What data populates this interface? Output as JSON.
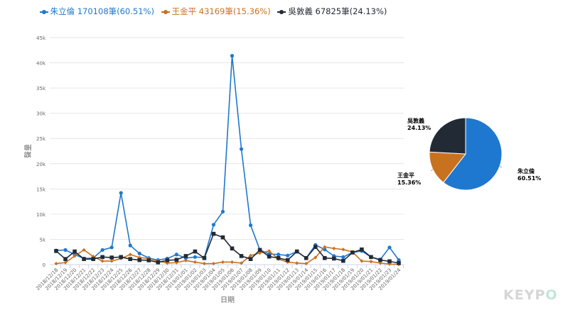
{
  "legend": [
    {
      "label": "朱立倫 170108筆(60.51%)",
      "color": "#1f78cf"
    },
    {
      "label": "王金平 43169筆(15.36%)",
      "color": "#c8721f"
    },
    {
      "label": "吳敦義 67825筆(24.13%)",
      "color": "#222a35"
    }
  ],
  "watermark": {
    "part1": "KEYP",
    "part2": "O"
  },
  "chart_data": [
    {
      "type": "line",
      "xlabel": "日期",
      "ylabel": "聲量",
      "ylim": [
        0,
        45000
      ],
      "yticks": [
        "0",
        "5k",
        "10k",
        "15k",
        "20k",
        "25k",
        "30k",
        "35k",
        "40k",
        "45k"
      ],
      "grid": true,
      "legend_position": "top",
      "categories": [
        "2018/12/18",
        "2018/12/19",
        "2018/12/20",
        "2018/12/21",
        "2018/12/22",
        "2018/12/23",
        "2018/12/24",
        "2018/12/25",
        "2018/12/26",
        "2018/12/27",
        "2018/12/28",
        "2018/12/29",
        "2018/12/30",
        "2018/12/31",
        "2019/01/01",
        "2019/01/02",
        "2019/01/03",
        "2019/01/04",
        "2019/01/05",
        "2019/01/06",
        "2019/01/07",
        "2019/01/08",
        "2019/01/09",
        "2019/01/10",
        "2019/01/11",
        "2019/01/12",
        "2019/01/13",
        "2019/01/14",
        "2019/01/15",
        "2019/01/16",
        "2019/01/17",
        "2019/01/18",
        "2019/01/19",
        "2019/01/20",
        "2019/01/21",
        "2019/01/22",
        "2019/01/23",
        "2019/01/24"
      ],
      "series": [
        {
          "name": "朱立倫",
          "color": "#1f78cf",
          "marker": "circle",
          "values": [
            2800,
            2900,
            2000,
            1200,
            1300,
            2900,
            3400,
            14200,
            3800,
            2200,
            1300,
            900,
            1200,
            2000,
            1300,
            1500,
            1400,
            7900,
            10500,
            41400,
            22900,
            7800,
            2900,
            2100,
            2000,
            1800,
            2600,
            1300,
            3900,
            3000,
            1700,
            1500,
            2400,
            2700,
            1500,
            1000,
            3400,
            900
          ]
        },
        {
          "name": "王金平",
          "color": "#c8721f",
          "marker": "diamond",
          "values": [
            200,
            400,
            1700,
            2900,
            1600,
            700,
            700,
            1200,
            2000,
            1400,
            1200,
            700,
            300,
            400,
            800,
            500,
            200,
            200,
            500,
            500,
            300,
            1800,
            2300,
            2700,
            1100,
            500,
            300,
            200,
            1400,
            3500,
            3200,
            3000,
            2500,
            700,
            600,
            300,
            100,
            50
          ]
        },
        {
          "name": "吳敦義",
          "color": "#222a35",
          "marker": "square",
          "values": [
            2700,
            1100,
            2600,
            1100,
            1100,
            1500,
            1400,
            1500,
            1100,
            900,
            850,
            450,
            850,
            950,
            1700,
            2600,
            1300,
            6100,
            5400,
            3200,
            1700,
            1100,
            2900,
            1600,
            1300,
            900,
            2600,
            1300,
            3500,
            1300,
            1200,
            750,
            2400,
            3000,
            1500,
            900,
            650,
            300
          ]
        }
      ]
    },
    {
      "type": "pie",
      "slices": [
        {
          "label": "朱立倫",
          "value": 60.51,
          "text": "60.51%",
          "color": "#1f78cf"
        },
        {
          "label": "王金平",
          "value": 15.36,
          "text": "15.36%",
          "color": "#c8721f"
        },
        {
          "label": "吳敦義",
          "value": 24.13,
          "text": "24.13%",
          "color": "#222a35"
        }
      ]
    }
  ]
}
